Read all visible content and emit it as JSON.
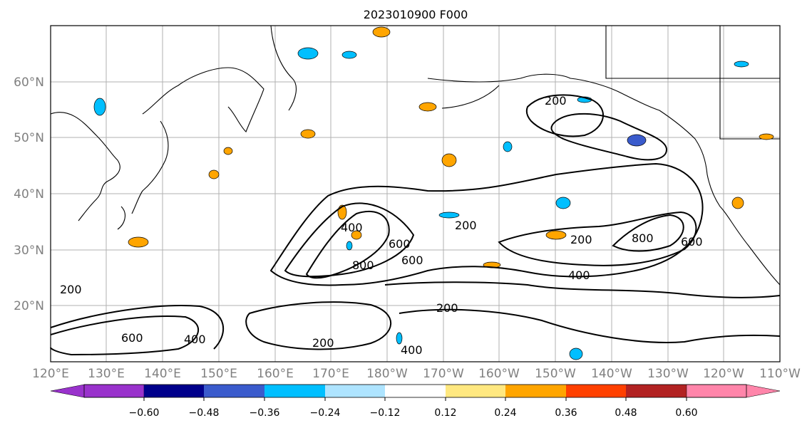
{
  "title": "2023010900 F000",
  "map": {
    "lat_labels": [
      "60°N",
      "50°N",
      "40°N",
      "30°N",
      "20°N"
    ],
    "lon_labels": [
      "120°E",
      "130°E",
      "140°E",
      "150°E",
      "160°E",
      "170°E",
      "180°W",
      "170°W",
      "160°W",
      "150°W",
      "140°W",
      "130°W",
      "120°W",
      "110°W"
    ],
    "contour_labels": [
      "200",
      "200",
      "200",
      "200",
      "200",
      "200",
      "400",
      "400",
      "400",
      "400",
      "600",
      "600",
      "600",
      "600",
      "800",
      "800"
    ]
  },
  "colorbar": {
    "colors": [
      "#9932CC",
      "#00008B",
      "#3A5BCC",
      "#00BFFF",
      "#AEE4FF",
      "#FFFFFF",
      "#FFE880",
      "#FFA500",
      "#FF4000",
      "#B22222",
      "#FF85AA"
    ],
    "tick_labels": [
      "−0.60",
      "−0.48",
      "−0.36",
      "−0.24",
      "−0.12",
      "0.12",
      "0.24",
      "0.36",
      "0.48",
      "0.60"
    ]
  }
}
